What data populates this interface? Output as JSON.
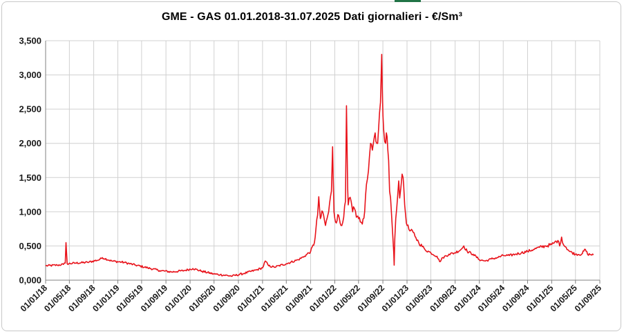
{
  "chart_data": {
    "type": "line",
    "title": "GME - GAS 01.01.2018-31.07.2025 Dati giornalieri - €/Sm³",
    "xlabel": "",
    "ylabel": "",
    "ylim": [
      0,
      3.5
    ],
    "yticks": [
      "0,000",
      "0,500",
      "1,000",
      "1,500",
      "2,000",
      "2,500",
      "3,000",
      "3,500"
    ],
    "xticks": [
      "01/01/18",
      "01/05/18",
      "01/09/18",
      "01/01/19",
      "01/05/19",
      "01/09/19",
      "01/01/20",
      "01/05/20",
      "01/09/20",
      "01/01/21",
      "01/05/21",
      "01/09/21",
      "01/01/22",
      "01/05/22",
      "01/09/22",
      "01/01/23",
      "01/05/23",
      "01/09/23",
      "01/01/24",
      "01/05/24",
      "01/09/24",
      "01/01/25",
      "01/05/25",
      "01/09/25"
    ],
    "grid": true,
    "legend": "none",
    "series": [
      {
        "color": "#e8121a",
        "x": [
          "2018-01-01",
          "2018-03-01",
          "2018-04-01",
          "2018-04-10",
          "2018-04-14",
          "2018-04-20",
          "2018-06-01",
          "2018-08-01",
          "2018-10-01",
          "2018-10-15",
          "2018-12-01",
          "2019-02-01",
          "2019-04-01",
          "2019-06-01",
          "2019-08-01",
          "2019-10-01",
          "2019-12-01",
          "2020-01-15",
          "2020-03-01",
          "2020-05-01",
          "2020-06-01",
          "2020-08-01",
          "2020-10-01",
          "2020-12-01",
          "2021-01-01",
          "2021-01-15",
          "2021-02-01",
          "2021-03-01",
          "2021-05-01",
          "2021-07-01",
          "2021-08-01",
          "2021-09-01",
          "2021-09-20",
          "2021-10-06",
          "2021-10-12",
          "2021-10-20",
          "2021-11-01",
          "2021-11-15",
          "2021-12-01",
          "2021-12-15",
          "2021-12-21",
          "2021-12-28",
          "2022-01-05",
          "2022-01-20",
          "2022-02-01",
          "2022-02-15",
          "2022-02-24",
          "2022-03-01",
          "2022-03-07",
          "2022-03-10",
          "2022-03-15",
          "2022-03-25",
          "2022-04-01",
          "2022-04-10",
          "2022-04-20",
          "2022-05-01",
          "2022-05-10",
          "2022-05-20",
          "2022-06-01",
          "2022-06-10",
          "2022-06-20",
          "2022-06-25",
          "2022-07-01",
          "2022-07-10",
          "2022-07-20",
          "2022-08-01",
          "2022-08-10",
          "2022-08-20",
          "2022-08-26",
          "2022-08-29",
          "2022-09-05",
          "2022-09-15",
          "2022-09-22",
          "2022-09-30",
          "2022-10-05",
          "2022-10-10",
          "2022-10-20",
          "2022-10-26",
          "2022-10-28",
          "2022-10-31",
          "2022-11-05",
          "2022-11-10",
          "2022-11-15",
          "2022-11-20",
          "2022-11-25",
          "2022-12-01",
          "2022-12-07",
          "2022-12-12",
          "2022-12-15",
          "2022-12-20",
          "2022-12-25",
          "2023-01-01",
          "2023-01-15",
          "2023-02-01",
          "2023-02-15",
          "2023-03-01",
          "2023-04-01",
          "2023-05-01",
          "2023-06-01",
          "2023-06-15",
          "2023-07-01",
          "2023-08-01",
          "2023-09-01",
          "2023-10-01",
          "2023-10-15",
          "2023-11-01",
          "2023-12-01",
          "2024-01-01",
          "2024-02-01",
          "2024-03-01",
          "2024-04-01",
          "2024-05-01",
          "2024-06-01",
          "2024-07-01",
          "2024-08-01",
          "2024-09-01",
          "2024-10-01",
          "2024-11-01",
          "2024-12-01",
          "2025-01-01",
          "2025-01-15",
          "2025-02-01",
          "2025-02-10",
          "2025-02-20",
          "2025-03-01",
          "2025-03-15",
          "2025-04-01",
          "2025-05-01",
          "2025-06-01",
          "2025-06-20",
          "2025-07-01",
          "2025-07-31"
        ],
        "y": [
          0.21,
          0.22,
          0.23,
          0.25,
          0.55,
          0.24,
          0.25,
          0.26,
          0.3,
          0.33,
          0.28,
          0.26,
          0.22,
          0.18,
          0.14,
          0.12,
          0.14,
          0.17,
          0.13,
          0.09,
          0.08,
          0.06,
          0.1,
          0.15,
          0.18,
          0.28,
          0.21,
          0.19,
          0.24,
          0.3,
          0.35,
          0.42,
          0.55,
          0.95,
          1.22,
          0.9,
          1.0,
          0.8,
          1.0,
          1.3,
          1.95,
          1.0,
          0.85,
          0.95,
          0.8,
          0.92,
          1.15,
          2.55,
          1.35,
          1.1,
          1.2,
          1.15,
          1.0,
          1.05,
          0.92,
          0.9,
          0.85,
          0.82,
          1.0,
          1.4,
          1.6,
          1.8,
          2.0,
          1.9,
          2.1,
          2.0,
          2.2,
          2.6,
          3.3,
          2.8,
          2.2,
          2.0,
          2.1,
          1.75,
          1.3,
          1.2,
          0.7,
          0.4,
          0.22,
          0.6,
          0.9,
          1.05,
          1.25,
          1.45,
          1.2,
          1.35,
          1.55,
          1.5,
          1.4,
          1.1,
          0.95,
          0.8,
          0.72,
          0.7,
          0.62,
          0.55,
          0.45,
          0.4,
          0.35,
          0.27,
          0.33,
          0.38,
          0.4,
          0.45,
          0.5,
          0.42,
          0.38,
          0.3,
          0.28,
          0.31,
          0.33,
          0.36,
          0.36,
          0.38,
          0.4,
          0.42,
          0.45,
          0.48,
          0.5,
          0.52,
          0.55,
          0.58,
          0.5,
          0.63,
          0.52,
          0.48,
          0.42,
          0.38,
          0.38,
          0.45,
          0.38,
          0.37
        ]
      }
    ]
  }
}
